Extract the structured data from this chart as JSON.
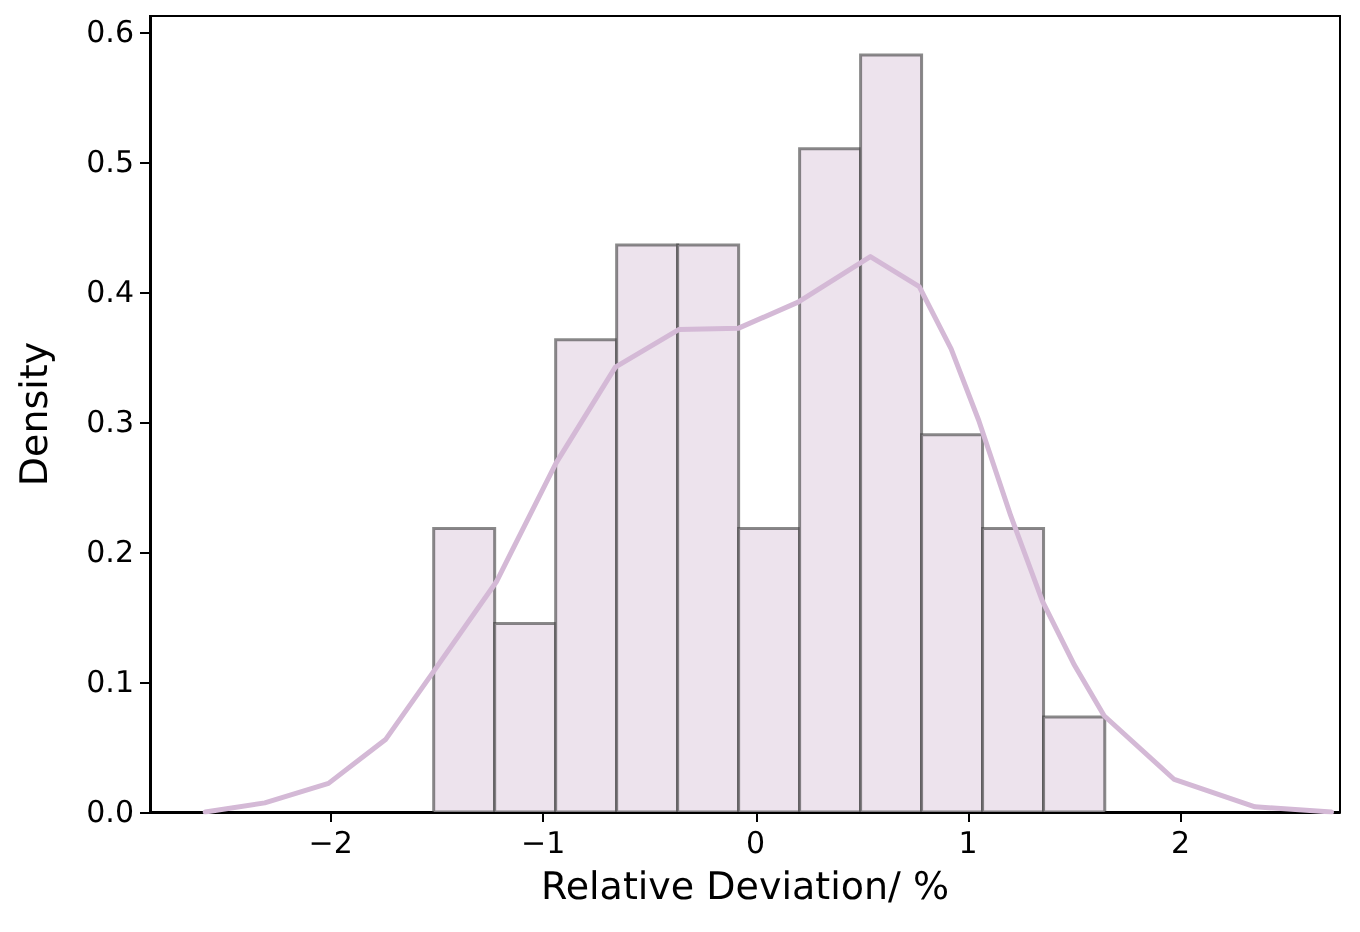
{
  "chart_data": {
    "type": "histogram",
    "xlabel": "Relative Deviation/ %",
    "ylabel": "Density",
    "series": [
      {
        "type": "histogram",
        "color": "#ede3ed",
        "bins": [
          -1.515,
          -1.228,
          -0.941,
          -0.654,
          -0.367,
          -0.08,
          0.207,
          0.494,
          0.781,
          1.068,
          1.355,
          1.643
        ],
        "values": [
          0.218,
          0.145,
          0.363,
          0.436,
          0.436,
          0.218,
          0.51,
          0.582,
          0.29,
          0.218,
          0.073
        ]
      },
      {
        "type": "line",
        "color": "#d4b9d6",
        "x": [
          -2.59,
          -2.31,
          -2.01,
          -1.74,
          -1.52,
          -1.22,
          -0.94,
          -0.66,
          -0.36,
          -0.08,
          0.2,
          0.54,
          0.77,
          0.92,
          1.05,
          1.2,
          1.35,
          1.5,
          1.64,
          1.97,
          2.35,
          2.71
        ],
        "values": [
          0,
          0.007,
          0.022,
          0.056,
          0.107,
          0.177,
          0.268,
          0.342,
          0.371,
          0.372,
          0.392,
          0.427,
          0.404,
          0.356,
          0.301,
          0.228,
          0.162,
          0.113,
          0.074,
          0.025,
          0.004,
          0
        ]
      }
    ],
    "xlim": [
      -2.85,
      2.75
    ],
    "xticks": [
      {
        "value": -2,
        "label": "−2"
      },
      {
        "value": -1,
        "label": "−1"
      },
      0,
      1,
      2
    ],
    "ylim": [
      0,
      0.612
    ],
    "yticks": [
      {
        "value": 0,
        "label": "0.0"
      },
      0.1,
      0.2,
      0.3,
      0.4,
      0.5,
      0.6
    ],
    "grid": false,
    "marker": "none",
    "line_style": "solid"
  }
}
